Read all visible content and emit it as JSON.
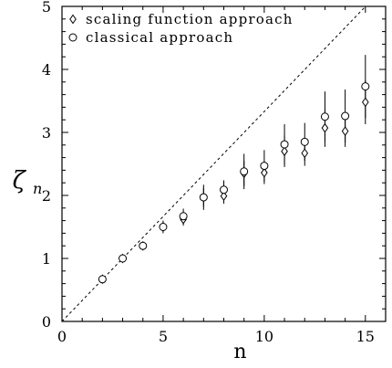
{
  "chart_data": {
    "type": "scatter",
    "title": "",
    "xlabel": "n",
    "ylabel": "ζ",
    "ylabel_sub": "n",
    "xlim": [
      0,
      16
    ],
    "ylim": [
      0,
      5
    ],
    "xticks": [
      0,
      5,
      10,
      15
    ],
    "yticks": [
      0,
      1,
      2,
      3,
      4,
      5
    ],
    "grid": false,
    "legend_position": "top-left",
    "reference_line": {
      "style": "dashed",
      "x": [
        0,
        16
      ],
      "y": [
        0,
        5.33
      ]
    },
    "series": [
      {
        "name": "scaling function approach",
        "marker": "diamond",
        "x": [
          2,
          3,
          4,
          5,
          6,
          7,
          8,
          9,
          10,
          11,
          12,
          13,
          14,
          15
        ],
        "y": [
          0.67,
          1.0,
          1.2,
          1.5,
          1.62,
          1.97,
          1.99,
          2.35,
          2.36,
          2.7,
          2.67,
          3.07,
          3.02,
          3.48
        ],
        "err": [
          0.02,
          0.03,
          0.05,
          0.08,
          0.1,
          0.15,
          0.12,
          0.2,
          0.18,
          0.25,
          0.2,
          0.3,
          0.25,
          0.35
        ]
      },
      {
        "name": "classical approach",
        "marker": "circle",
        "x": [
          2,
          3,
          4,
          5,
          6,
          7,
          8,
          9,
          10,
          11,
          12,
          13,
          14,
          15
        ],
        "y": [
          0.67,
          1.0,
          1.2,
          1.5,
          1.67,
          1.97,
          2.09,
          2.38,
          2.47,
          2.81,
          2.85,
          3.25,
          3.26,
          3.73
        ],
        "err": [
          0.03,
          0.05,
          0.06,
          0.1,
          0.12,
          0.2,
          0.15,
          0.28,
          0.25,
          0.32,
          0.3,
          0.4,
          0.42,
          0.5
        ]
      }
    ]
  }
}
